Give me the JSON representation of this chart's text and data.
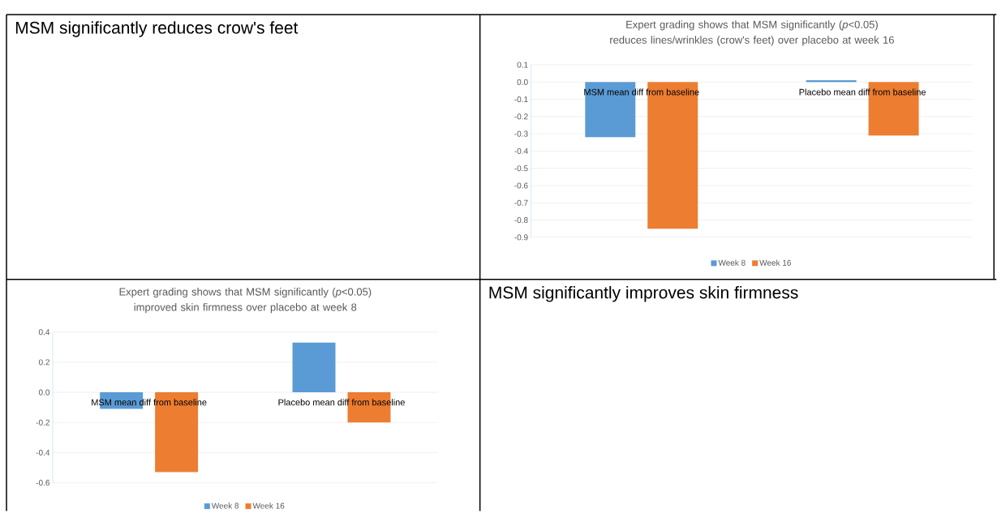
{
  "chart_data": [
    {
      "type": "other",
      "title": "MSM significantly reduces crow's feet"
    },
    {
      "type": "bar",
      "title": "Expert grading shows that MSM significantly (*p*<0.05) reduces lines/wrinkles (crow's feet) over placebo at week 16",
      "categories": [
        "MSM mean diff from baseline",
        "Placebo mean diff from baseline"
      ],
      "series": [
        {
          "name": "Week 8",
          "color": "#5b9bd5",
          "values": [
            -0.32,
            0.01
          ]
        },
        {
          "name": "Week 16",
          "color": "#ed7d31",
          "values": [
            -0.85,
            -0.31
          ]
        }
      ],
      "ylim": [
        -0.9,
        0.1
      ],
      "yticks": [
        -0.9,
        -0.8,
        -0.7,
        -0.6,
        -0.5,
        -0.4,
        -0.3,
        -0.2,
        -0.1,
        {
          "value": 0,
          "label": "0.0"
        },
        0.1
      ],
      "grid": "y",
      "legend": "bottom"
    },
    {
      "type": "bar",
      "title": "Expert grading shows that MSM significantly (*p*<0.05) improved skin firmness over placebo at week 8",
      "categories": [
        "MSM mean diff from baseline",
        "Placebo mean diff from baseline"
      ],
      "series": [
        {
          "name": "Week 8",
          "color": "#5b9bd5",
          "values": [
            -0.11,
            0.33
          ]
        },
        {
          "name": "Week 16",
          "color": "#ed7d31",
          "values": [
            -0.53,
            -0.2
          ]
        }
      ],
      "ylim": [
        -0.6,
        0.4
      ],
      "yticks": [
        -0.6,
        -0.4,
        -0.2,
        {
          "value": 0,
          "label": "0.0"
        },
        0.2,
        0.4
      ],
      "grid": "y",
      "legend": "bottom"
    },
    {
      "type": "other",
      "title": "MSM significantly improves skin firmness"
    }
  ]
}
